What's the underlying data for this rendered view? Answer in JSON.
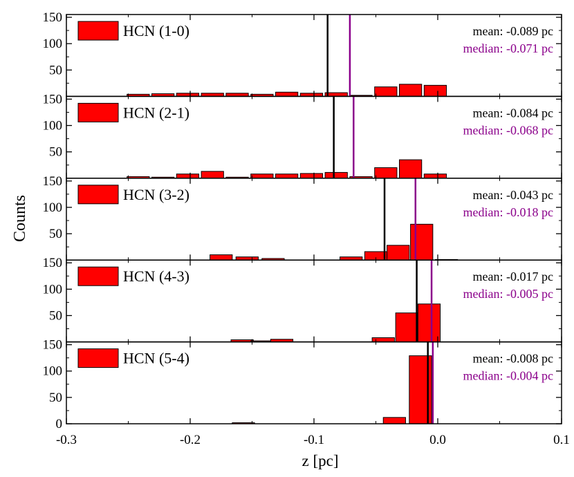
{
  "chart_data": {
    "type": "bar",
    "xlabel": "z [pc]",
    "ylabel": "Counts",
    "xlim": [
      -0.3,
      0.1
    ],
    "ylim": [
      0,
      150
    ],
    "x_ticks": [
      "-0.3",
      "-0.2",
      "-0.1",
      "0.0",
      "0.1"
    ],
    "y_ticks": [
      "0",
      "50",
      "100",
      "150"
    ],
    "bin_width": 0.018,
    "bar_color": "#ff0000",
    "mean_color": "#000000",
    "median_color": "#8b008b",
    "panels": [
      {
        "legend": "HCN (1-0)",
        "mean": -0.089,
        "median": -0.071,
        "mean_text": "mean: -0.089 pc",
        "median_text": "median: -0.071 pc",
        "bins": [
          {
            "x": -0.242,
            "count": 4
          },
          {
            "x": -0.222,
            "count": 5
          },
          {
            "x": -0.202,
            "count": 6
          },
          {
            "x": -0.182,
            "count": 6
          },
          {
            "x": -0.162,
            "count": 6
          },
          {
            "x": -0.142,
            "count": 4
          },
          {
            "x": -0.122,
            "count": 8
          },
          {
            "x": -0.102,
            "count": 6
          },
          {
            "x": -0.082,
            "count": 7
          },
          {
            "x": -0.062,
            "count": 2
          },
          {
            "x": -0.042,
            "count": 18
          },
          {
            "x": -0.022,
            "count": 23
          },
          {
            "x": -0.002,
            "count": 21
          }
        ]
      },
      {
        "legend": "HCN (2-1)",
        "mean": -0.084,
        "median": -0.068,
        "mean_text": "mean: -0.084 pc",
        "median_text": "median: -0.068 pc",
        "bins": [
          {
            "x": -0.242,
            "count": 3
          },
          {
            "x": -0.222,
            "count": 2
          },
          {
            "x": -0.202,
            "count": 8
          },
          {
            "x": -0.182,
            "count": 13
          },
          {
            "x": -0.162,
            "count": 2
          },
          {
            "x": -0.142,
            "count": 8
          },
          {
            "x": -0.122,
            "count": 8
          },
          {
            "x": -0.102,
            "count": 9
          },
          {
            "x": -0.082,
            "count": 11
          },
          {
            "x": -0.062,
            "count": 3
          },
          {
            "x": -0.042,
            "count": 20
          },
          {
            "x": -0.022,
            "count": 35
          },
          {
            "x": -0.002,
            "count": 8
          }
        ]
      },
      {
        "legend": "HCN (3-2)",
        "mean": -0.043,
        "median": -0.018,
        "mean_text": "mean: -0.043 pc",
        "median_text": "median: -0.018 pc",
        "bins": [
          {
            "x": -0.175,
            "count": 10
          },
          {
            "x": -0.154,
            "count": 6
          },
          {
            "x": -0.133,
            "count": 3
          },
          {
            "x": -0.07,
            "count": 6
          },
          {
            "x": -0.05,
            "count": 16
          },
          {
            "x": -0.032,
            "count": 28
          },
          {
            "x": -0.013,
            "count": 68
          },
          {
            "x": 0.007,
            "count": 1
          }
        ]
      },
      {
        "legend": "HCN (4-3)",
        "mean": -0.017,
        "median": -0.005,
        "mean_text": "mean: -0.017 pc",
        "median_text": "median: -0.005 pc",
        "bins": [
          {
            "x": -0.158,
            "count": 4
          },
          {
            "x": -0.142,
            "count": 2
          },
          {
            "x": -0.126,
            "count": 5
          },
          {
            "x": -0.044,
            "count": 8
          },
          {
            "x": -0.025,
            "count": 55
          },
          {
            "x": -0.007,
            "count": 72
          }
        ]
      },
      {
        "legend": "HCN (5-4)",
        "mean": -0.008,
        "median": -0.004,
        "mean_text": "mean: -0.008 pc",
        "median_text": "median: -0.004 pc",
        "bins": [
          {
            "x": -0.157,
            "count": 2
          },
          {
            "x": -0.035,
            "count": 12
          },
          {
            "x": -0.014,
            "count": 129
          }
        ]
      }
    ]
  }
}
